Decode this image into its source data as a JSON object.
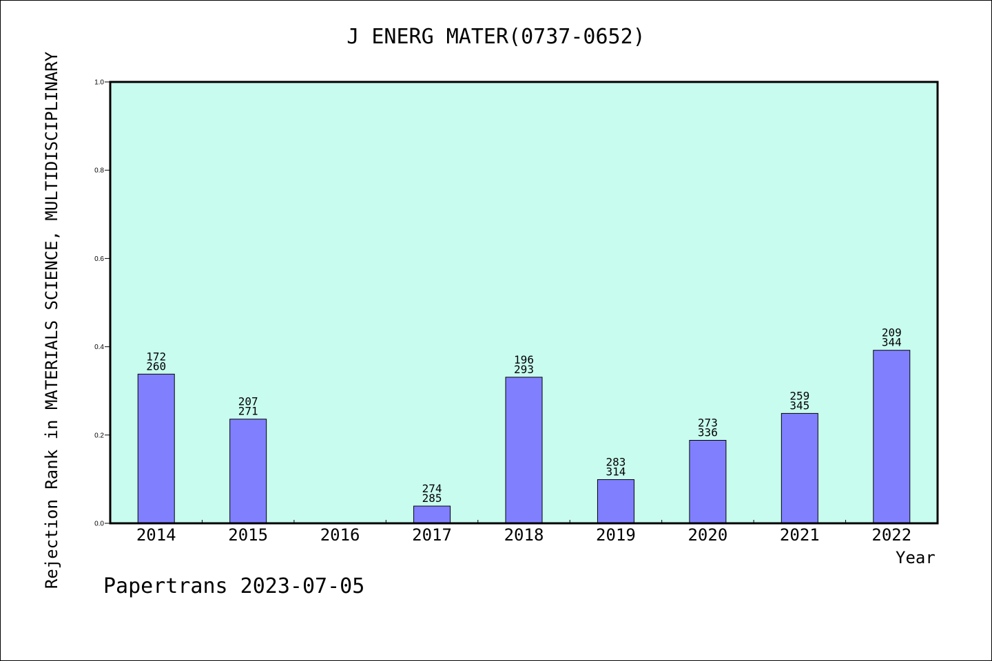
{
  "chart_data": {
    "type": "bar",
    "title": "J ENERG MATER(0737-0652)",
    "xlabel": "Year",
    "ylabel": "Rejection Rank in MATERIALS SCIENCE, MULTIDISCIPLINARY",
    "ylim": [
      0,
      1.0
    ],
    "yticks": [
      "0.0",
      "0.2",
      "0.4",
      "0.6",
      "0.8",
      "1.0"
    ],
    "categories": [
      "2014",
      "2015",
      "2016",
      "2017",
      "2018",
      "2019",
      "2020",
      "2021",
      "2022"
    ],
    "values": [
      0.338,
      0.236,
      null,
      0.039,
      0.331,
      0.099,
      0.188,
      0.249,
      0.392
    ],
    "annotations": [
      [
        "172",
        "260"
      ],
      [
        "207",
        "271"
      ],
      null,
      [
        "274",
        "285"
      ],
      [
        "196",
        "293"
      ],
      [
        "283",
        "314"
      ],
      [
        "273",
        "336"
      ],
      [
        "259",
        "345"
      ],
      [
        "209",
        "344"
      ]
    ],
    "colors": {
      "plot_background": "#c8fcee",
      "bar_fill": "#8080ff",
      "bar_stroke": "#000000"
    },
    "grid": false,
    "legend": "none"
  },
  "footer": {
    "watermark": "Papertrans 2023-07-05"
  }
}
